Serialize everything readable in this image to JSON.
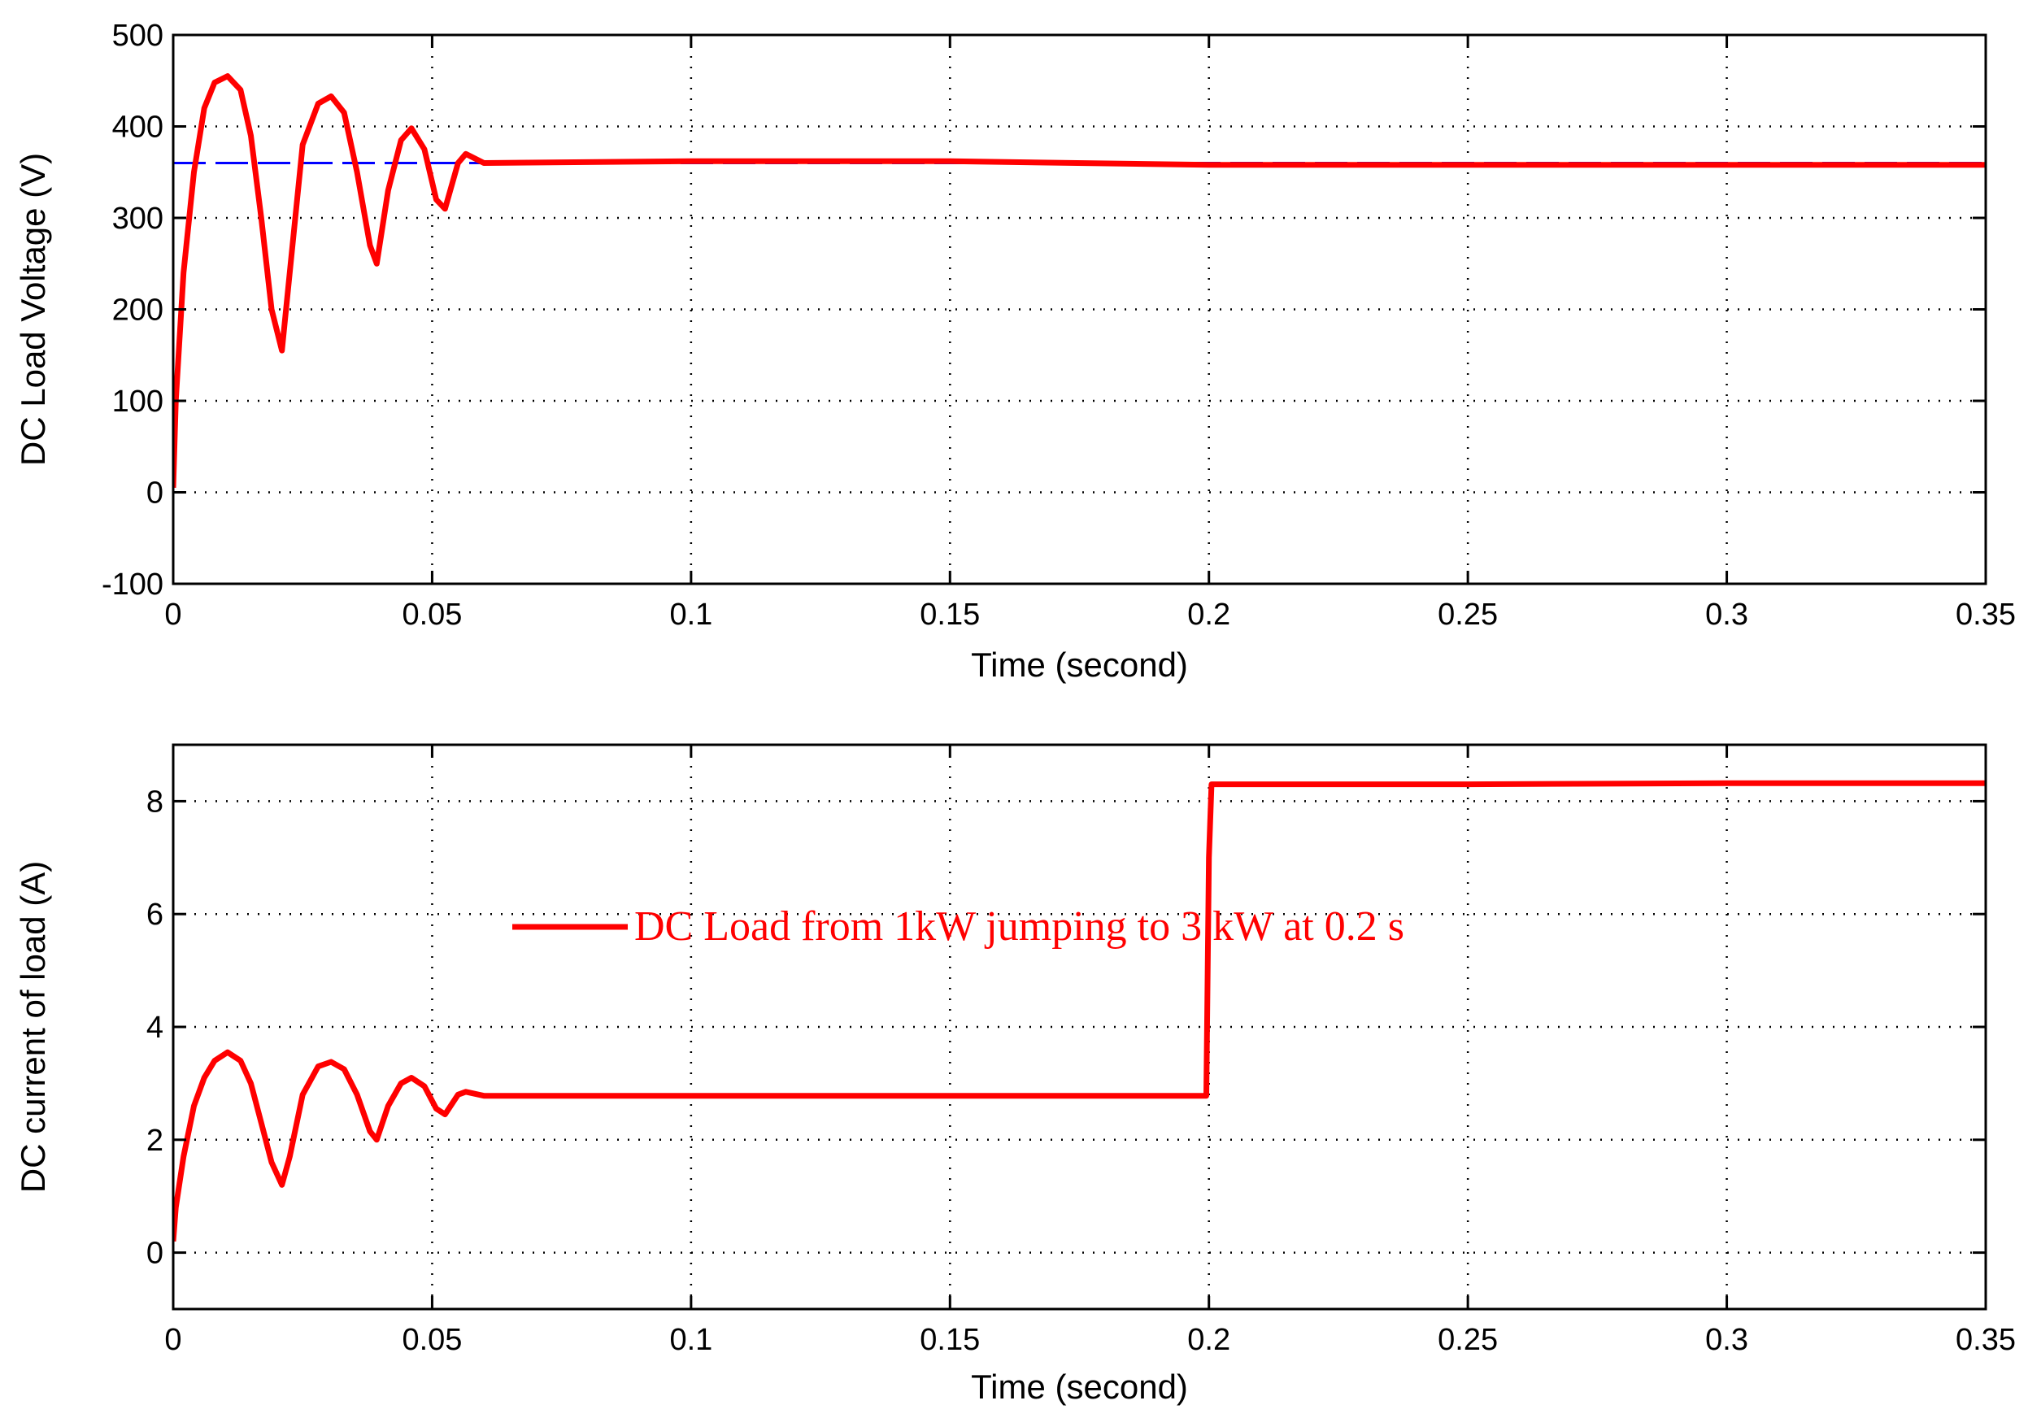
{
  "chart_data": [
    {
      "type": "line",
      "title": "",
      "xlabel": "Time (second)",
      "ylabel": "DC Load Voltage (V)",
      "xlim": [
        0,
        0.35
      ],
      "ylim": [
        -100,
        500
      ],
      "xticks": [
        0,
        0.05,
        0.1,
        0.15,
        0.2,
        0.25,
        0.3,
        0.35
      ],
      "xtick_labels": [
        "0",
        "0.05",
        "0.1",
        "0.15",
        "0.2",
        "0.25",
        "0.3",
        "0.35"
      ],
      "yticks": [
        -100,
        0,
        100,
        200,
        300,
        400,
        500
      ],
      "ytick_labels": [
        "-100",
        "0",
        "100",
        "200",
        "300",
        "400",
        "500"
      ],
      "grid": true,
      "series": [
        {
          "color": "#0000ff",
          "style": "dashed",
          "x": [
            0,
            0.35
          ],
          "y": [
            360,
            360
          ]
        },
        {
          "color": "#ff0000",
          "style": "solid",
          "x": [
            0,
            0.0005,
            0.002,
            0.004,
            0.006,
            0.008,
            0.0105,
            0.013,
            0.015,
            0.017,
            0.019,
            0.021,
            0.0225,
            0.025,
            0.028,
            0.0305,
            0.033,
            0.0355,
            0.038,
            0.0393,
            0.0415,
            0.044,
            0.046,
            0.0485,
            0.0508,
            0.0525,
            0.055,
            0.0565,
            0.06,
            0.1,
            0.15,
            0.2,
            0.35
          ],
          "y": [
            5,
            100,
            240,
            350,
            420,
            448,
            455,
            440,
            390,
            300,
            200,
            155,
            240,
            380,
            425,
            433,
            415,
            350,
            270,
            250,
            330,
            385,
            398,
            375,
            320,
            310,
            360,
            370,
            360,
            362,
            362,
            358,
            358
          ]
        }
      ]
    },
    {
      "type": "line",
      "title": "",
      "xlabel": "Time (second)",
      "ylabel": "DC current of load (A)",
      "xlim": [
        0,
        0.35
      ],
      "ylim": [
        -1,
        9
      ],
      "xticks": [
        0,
        0.05,
        0.1,
        0.15,
        0.2,
        0.25,
        0.3,
        0.35
      ],
      "xtick_labels": [
        "0",
        "0.05",
        "0.1",
        "0.15",
        "0.2",
        "0.25",
        "0.3",
        "0.35"
      ],
      "yticks": [
        0,
        2,
        4,
        6,
        8
      ],
      "ytick_labels": [
        "0",
        "2",
        "4",
        "6",
        "8"
      ],
      "grid": true,
      "legend": {
        "position": "center",
        "entries": [
          {
            "label": "DC Load from 1kW jumping to 3 kW at 0.2 s",
            "color": "#ff0000"
          }
        ]
      },
      "series": [
        {
          "name": "DC Load from 1kW jumping to 3 kW at 0.2 s",
          "color": "#ff0000",
          "style": "solid",
          "x": [
            0,
            0.0005,
            0.002,
            0.004,
            0.006,
            0.008,
            0.0105,
            0.013,
            0.015,
            0.017,
            0.019,
            0.021,
            0.0225,
            0.025,
            0.028,
            0.0305,
            0.033,
            0.0355,
            0.038,
            0.0393,
            0.0415,
            0.044,
            0.046,
            0.0485,
            0.0508,
            0.0525,
            0.055,
            0.0565,
            0.06,
            0.1,
            0.15,
            0.1995,
            0.2,
            0.2005,
            0.25,
            0.3,
            0.35
          ],
          "y": [
            0.2,
            0.8,
            1.7,
            2.6,
            3.1,
            3.4,
            3.55,
            3.4,
            3.0,
            2.3,
            1.6,
            1.2,
            1.7,
            2.8,
            3.3,
            3.38,
            3.25,
            2.8,
            2.15,
            2.0,
            2.6,
            3.0,
            3.1,
            2.95,
            2.55,
            2.45,
            2.8,
            2.85,
            2.78,
            2.78,
            2.78,
            2.78,
            7.0,
            8.3,
            8.3,
            8.32,
            8.32
          ]
        }
      ]
    }
  ]
}
